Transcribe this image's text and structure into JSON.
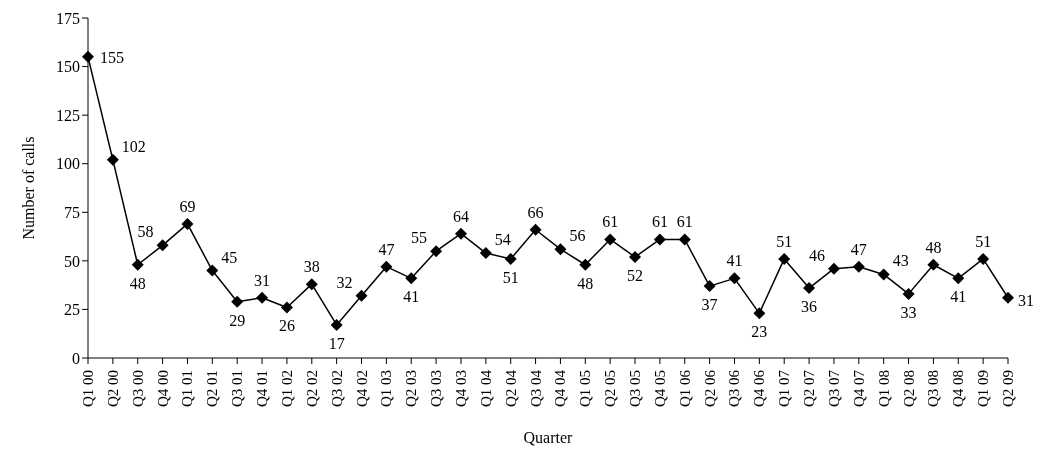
{
  "chart_data": {
    "type": "line",
    "xlabel": "Quarter",
    "ylabel": "Number of calls",
    "categories": [
      "Q1 00",
      "Q2 00",
      "Q3 00",
      "Q4 00",
      "Q1 01",
      "Q2 01",
      "Q3 01",
      "Q4 01",
      "Q1 02",
      "Q2 02",
      "Q3 02",
      "Q4 02",
      "Q1 03",
      "Q2 03",
      "Q3 03",
      "Q4 03",
      "Q1 04",
      "Q2 04",
      "Q3 04",
      "Q4 04",
      "Q1 05",
      "Q2 05",
      "Q3 05",
      "Q4 05",
      "Q1 06",
      "Q2 06",
      "Q3 06",
      "Q4 06",
      "Q1 07",
      "Q2 07",
      "Q3 07",
      "Q4 07",
      "Q1 08",
      "Q2 08",
      "Q3 08",
      "Q4 08",
      "Q1 09",
      "Q2 09"
    ],
    "values": [
      155,
      102,
      48,
      58,
      69,
      45,
      29,
      31,
      26,
      38,
      17,
      32,
      47,
      41,
      55,
      64,
      54,
      51,
      66,
      56,
      48,
      61,
      52,
      61,
      61,
      37,
      41,
      23,
      51,
      36,
      46,
      47,
      43,
      33,
      48,
      41,
      51,
      31
    ],
    "color": "#000000",
    "marker": "diamond",
    "line_style": "solid",
    "data_labels": true,
    "grid": false,
    "legend": false,
    "ylim": [
      0,
      175
    ],
    "yticks": [
      0,
      25,
      50,
      75,
      100,
      125,
      150,
      175
    ]
  }
}
